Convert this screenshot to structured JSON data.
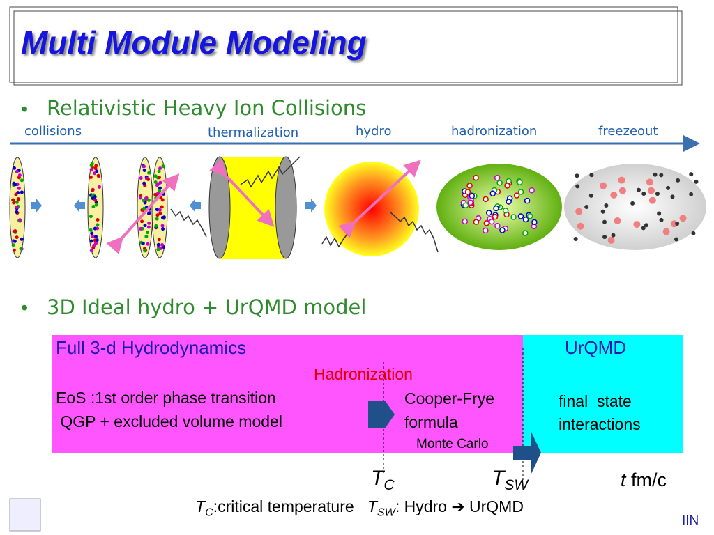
{
  "title": "Multi Module Modeling",
  "bullets": [
    "Relativistic Heavy Ion Collisions",
    "3D Ideal hydro + UrQMD model"
  ],
  "stages": [
    "collisions",
    "thermalization",
    "hydro",
    "hadronization",
    "freezeout"
  ],
  "model_box": {
    "hydro": {
      "title": "Full 3-d Hydrodynamics",
      "hadronization": "Hadronization",
      "eos": [
        "EoS :1st order phase transition",
        " QGP + excluded volume model"
      ],
      "cooper_frye": [
        "Cooper-Frye",
        "formula"
      ],
      "monte_carlo": "Monte Carlo"
    },
    "urqmd": {
      "title": "UrQMD",
      "lines": [
        "final  state",
        "interactions"
      ]
    }
  },
  "axis": {
    "tc": {
      "symbol": "T",
      "sub": "C"
    },
    "tsw": {
      "symbol": "T",
      "sub": "SW"
    },
    "time": {
      "symbol": "t",
      "unit": " fm/c"
    }
  },
  "footnote": {
    "tc": {
      "symbol": "T",
      "sub": "C",
      "text": ":critical temperature"
    },
    "tsw": {
      "symbol": "T",
      "sub": "SW",
      "text": ": Hydro ➔ UrQMD"
    }
  },
  "footer": "IIN"
}
